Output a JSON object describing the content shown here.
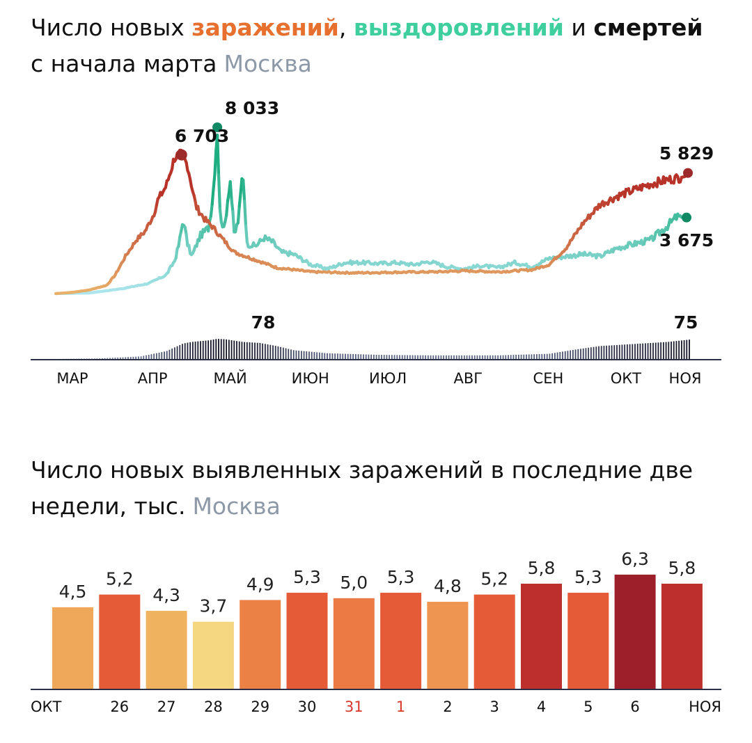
{
  "charts": [
    {
      "title_parts": {
        "prefix": "Число новых ",
        "infections": "заражений",
        "sep1": ", ",
        "recoveries": "выздоровлений",
        "sep2": " и ",
        "deaths": "смертей",
        "line2": "с начала марта",
        "location": "Москва"
      }
    },
    {
      "title_line1": "Число новых выявленных заражений в последние две",
      "title_line2": "недели, тыс.",
      "location": "Москва"
    }
  ],
  "chart_data": [
    {
      "type": "line",
      "x_months": [
        "МАР",
        "АПР",
        "МАЙ",
        "ИЮН",
        "ИЮЛ",
        "АВГ",
        "СЕН",
        "ОКТ",
        "НОЯ"
      ],
      "series": [
        {
          "name": "заражений",
          "color_low": "#e9b26b",
          "color_high": "#b73228",
          "keypoints": [
            [
              0,
              0
            ],
            [
              20,
              60
            ],
            [
              40,
              180
            ],
            [
              60,
              400
            ],
            [
              70,
              900
            ],
            [
              82,
              1800
            ],
            [
              95,
              2600
            ],
            [
              105,
              3000
            ],
            [
              115,
              3800
            ],
            [
              120,
              4500
            ],
            [
              130,
              5200
            ],
            [
              140,
              6600
            ],
            [
              148,
              6703
            ],
            [
              155,
              6200
            ],
            [
              165,
              4200
            ],
            [
              175,
              3600
            ],
            [
              185,
              3200
            ],
            [
              195,
              2700
            ],
            [
              210,
              2000
            ],
            [
              230,
              1700
            ],
            [
              260,
              1250
            ],
            [
              300,
              1050
            ],
            [
              350,
              1000
            ],
            [
              400,
              1030
            ],
            [
              450,
              1050
            ],
            [
              480,
              1100
            ],
            [
              520,
              1050
            ],
            [
              560,
              1150
            ],
            [
              580,
              1400
            ],
            [
              600,
              2200
            ],
            [
              620,
              3400
            ],
            [
              640,
              4300
            ],
            [
              660,
              4700
            ],
            [
              680,
              5000
            ],
            [
              700,
              5300
            ],
            [
              720,
              5500
            ],
            [
              740,
              5650
            ],
            [
              745,
              5829
            ]
          ],
          "peak_max": 6703,
          "last": 5829
        },
        {
          "name": "выздоровлений",
          "color_low": "#aee6ef",
          "color_high": "#1fae82",
          "keypoints": [
            [
              0,
              0
            ],
            [
              40,
              30
            ],
            [
              80,
              250
            ],
            [
              110,
              500
            ],
            [
              130,
              900
            ],
            [
              140,
              1600
            ],
            [
              145,
              2400
            ],
            [
              150,
              3600
            ],
            [
              155,
              2400
            ],
            [
              160,
              1800
            ],
            [
              170,
              2800
            ],
            [
              180,
              3200
            ],
            [
              185,
              4800
            ],
            [
              190,
              8033
            ],
            [
              193,
              4000
            ],
            [
              198,
              3000
            ],
            [
              205,
              5600
            ],
            [
              210,
              2800
            ],
            [
              215,
              3600
            ],
            [
              220,
              6000
            ],
            [
              225,
              2400
            ],
            [
              235,
              2300
            ],
            [
              245,
              2700
            ],
            [
              255,
              2500
            ],
            [
              265,
              2000
            ],
            [
              280,
              1900
            ],
            [
              300,
              1400
            ],
            [
              320,
              1200
            ],
            [
              340,
              1500
            ],
            [
              360,
              1500
            ],
            [
              380,
              1450
            ],
            [
              400,
              1500
            ],
            [
              420,
              1400
            ],
            [
              440,
              1550
            ],
            [
              460,
              1300
            ],
            [
              480,
              1200
            ],
            [
              500,
              1350
            ],
            [
              520,
              1250
            ],
            [
              540,
              1500
            ],
            [
              560,
              1300
            ],
            [
              580,
              1700
            ],
            [
              600,
              1800
            ],
            [
              620,
              1900
            ],
            [
              640,
              1800
            ],
            [
              660,
              2200
            ],
            [
              680,
              2400
            ],
            [
              700,
              2600
            ],
            [
              720,
              3300
            ],
            [
              730,
              3700
            ],
            [
              740,
              3675
            ],
            [
              745,
              3675
            ]
          ],
          "peak_max": 8033,
          "last": 3675
        },
        {
          "name": "смертей",
          "color_low": "#6d7a9a",
          "color_high": "#0d0d1c",
          "keypoints": [
            [
              0,
              0
            ],
            [
              50,
              2
            ],
            [
              100,
              10
            ],
            [
              130,
              30
            ],
            [
              140,
              45
            ],
            [
              150,
              60
            ],
            [
              160,
              66
            ],
            [
              180,
              72
            ],
            [
              190,
              78
            ],
            [
              200,
              76
            ],
            [
              220,
              66
            ],
            [
              240,
              62
            ],
            [
              260,
              50
            ],
            [
              280,
              34
            ],
            [
              320,
              22
            ],
            [
              380,
              16
            ],
            [
              440,
              14
            ],
            [
              520,
              14
            ],
            [
              580,
              20
            ],
            [
              610,
              36
            ],
            [
              640,
              50
            ],
            [
              670,
              56
            ],
            [
              700,
              62
            ],
            [
              720,
              66
            ],
            [
              745,
              75
            ]
          ],
          "peak_max": 78,
          "last": 75
        }
      ],
      "annotations": [
        "6 703",
        "8 033",
        "5 829",
        "3 675",
        "78",
        "75"
      ]
    },
    {
      "type": "bar",
      "categories": [
        "ОКТ",
        "26",
        "27",
        "28",
        "29",
        "30",
        "31",
        "1",
        "2",
        "3",
        "4",
        "5",
        "6",
        "НОЯ"
      ],
      "weekend_categories": [
        "31",
        "1"
      ],
      "values": [
        4.5,
        5.2,
        4.3,
        3.7,
        4.9,
        5.3,
        5.0,
        5.3,
        4.8,
        5.2,
        5.8,
        5.3,
        6.3,
        5.8
      ],
      "value_labels": [
        "4,5",
        "5,2",
        "4,3",
        "3,7",
        "4,9",
        "5,3",
        "5,0",
        "5,3",
        "4,8",
        "5,2",
        "5,8",
        "5,3",
        "6,3",
        "5,8"
      ],
      "colors": [
        "#efa759",
        "#e55b38",
        "#efb25f",
        "#f6d781",
        "#ec8146",
        "#e55b38",
        "#eb7a44",
        "#e55b38",
        "#ee9651",
        "#e55b38",
        "#bd2f2c",
        "#e55b38",
        "#9c1f2a",
        "#bd2f2c"
      ],
      "ylim": [
        0,
        6.5
      ]
    }
  ]
}
